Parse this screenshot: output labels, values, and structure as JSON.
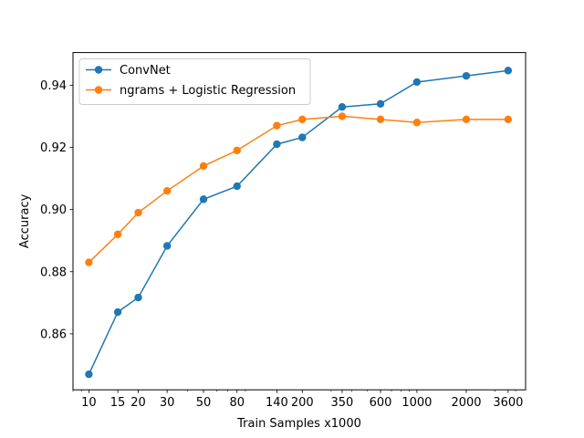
{
  "chart_data": {
    "type": "line",
    "title": "",
    "xlabel": "Train Samples x1000",
    "ylabel": "Accuracy",
    "x_scale": "log",
    "xlim": [
      8,
      4600
    ],
    "ylim": [
      0.842,
      0.9505
    ],
    "x_ticks": [
      10,
      15,
      20,
      30,
      50,
      80,
      140,
      200,
      350,
      600,
      1000,
      2000,
      3600
    ],
    "x_tick_labels": [
      "10",
      "15",
      "20",
      "30",
      "50",
      "80",
      "140",
      "200",
      "350",
      "600",
      "1000",
      "2000",
      "3600"
    ],
    "y_ticks": [
      0.86,
      0.88,
      0.9,
      0.92,
      0.94
    ],
    "y_tick_labels": [
      "0.86",
      "0.88",
      "0.90",
      "0.92",
      "0.94"
    ],
    "grid": false,
    "legend_position": "upper-left",
    "series": [
      {
        "name": "ConvNet",
        "color": "#1f77b4",
        "x": [
          10,
          15,
          20,
          30,
          50,
          80,
          140,
          200,
          350,
          600,
          1000,
          2000,
          3600
        ],
        "values": [
          0.847,
          0.867,
          0.8717,
          0.8883,
          0.9033,
          0.9075,
          0.921,
          0.9232,
          0.933,
          0.934,
          0.941,
          0.943,
          0.9447
        ]
      },
      {
        "name": "ngrams + Logistic Regression",
        "color": "#ff7f0e",
        "x": [
          10,
          15,
          20,
          30,
          50,
          80,
          140,
          200,
          350,
          600,
          1000,
          2000,
          3600
        ],
        "values": [
          0.883,
          0.892,
          0.899,
          0.906,
          0.914,
          0.919,
          0.927,
          0.929,
          0.93,
          0.929,
          0.928,
          0.929,
          0.929
        ]
      }
    ]
  }
}
